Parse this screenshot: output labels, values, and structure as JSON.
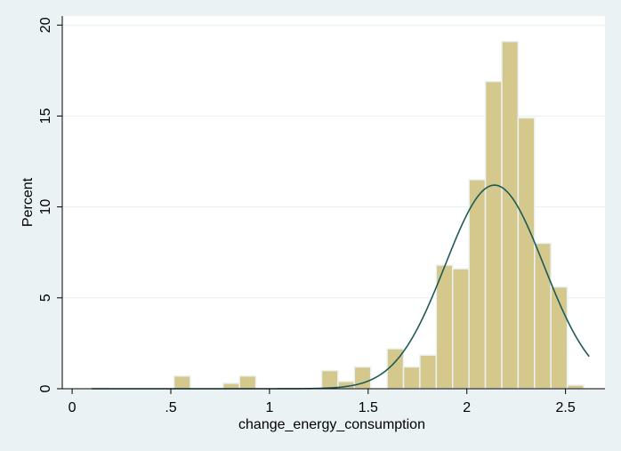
{
  "chart_data": {
    "type": "bar",
    "subtype": "histogram-with-normal-density",
    "title": "",
    "xlabel": "change_energy_consumption",
    "ylabel": "Percent",
    "xlim": [
      -0.05,
      2.7
    ],
    "ylim": [
      0,
      20.5
    ],
    "x_ticks": [
      0,
      0.5,
      1,
      1.5,
      2,
      2.5
    ],
    "x_tick_labels": [
      "0",
      ".5",
      "1",
      "1.5",
      "2",
      "2.5"
    ],
    "y_ticks": [
      0,
      5,
      10,
      15,
      20
    ],
    "y_tick_labels": [
      "0",
      "5",
      "10",
      "15",
      "20"
    ],
    "grid": "horizontal",
    "bin_width": 0.083,
    "bins": [
      {
        "start": 0.1,
        "end": 0.183,
        "value": 0.05
      },
      {
        "start": 0.516,
        "end": 0.599,
        "value": 0.7
      },
      {
        "start": 0.765,
        "end": 0.848,
        "value": 0.3
      },
      {
        "start": 0.848,
        "end": 0.931,
        "value": 0.7
      },
      {
        "start": 1.264,
        "end": 1.347,
        "value": 1.0
      },
      {
        "start": 1.347,
        "end": 1.43,
        "value": 0.4
      },
      {
        "start": 1.43,
        "end": 1.513,
        "value": 1.2
      },
      {
        "start": 1.596,
        "end": 1.679,
        "value": 2.2
      },
      {
        "start": 1.679,
        "end": 1.762,
        "value": 1.2
      },
      {
        "start": 1.762,
        "end": 1.845,
        "value": 1.85
      },
      {
        "start": 1.845,
        "end": 1.928,
        "value": 6.8
      },
      {
        "start": 1.928,
        "end": 2.011,
        "value": 6.6
      },
      {
        "start": 2.011,
        "end": 2.094,
        "value": 11.5
      },
      {
        "start": 2.094,
        "end": 2.177,
        "value": 16.9
      },
      {
        "start": 2.177,
        "end": 2.26,
        "value": 19.1
      },
      {
        "start": 2.26,
        "end": 2.343,
        "value": 14.9
      },
      {
        "start": 2.343,
        "end": 2.426,
        "value": 8.0
      },
      {
        "start": 2.426,
        "end": 2.509,
        "value": 5.6
      },
      {
        "start": 2.509,
        "end": 2.592,
        "value": 0.2
      }
    ],
    "density_curve": {
      "type": "normal",
      "mean": 2.14,
      "sd": 0.25,
      "peak": 11.2,
      "x_range": [
        0.1,
        2.62
      ]
    },
    "colors": {
      "background": "#eaf2f3",
      "plot_background": "#ffffff",
      "bar_fill": "#d4c88c",
      "bar_stroke": "#eaf2f3",
      "curve": "#1f5a58",
      "grid": "#e8eef0",
      "axis": "#000000"
    }
  }
}
